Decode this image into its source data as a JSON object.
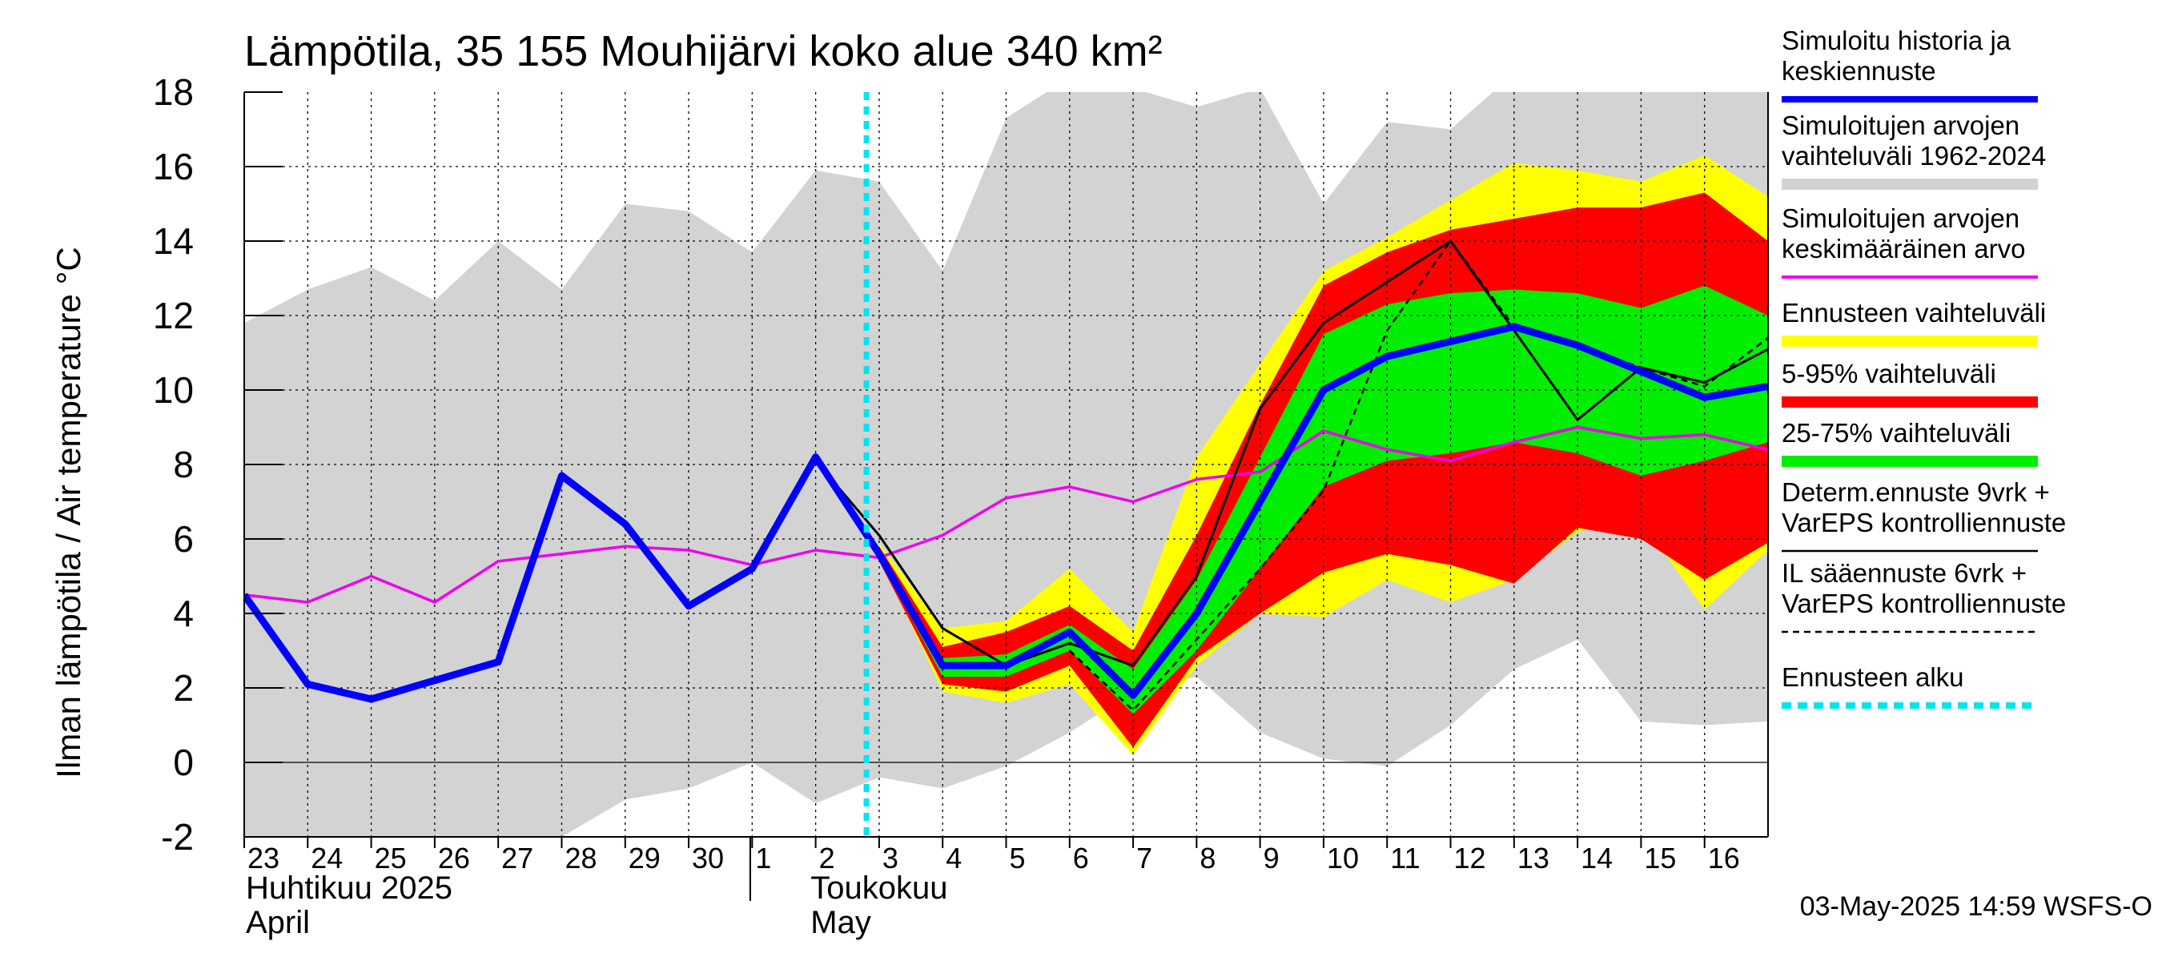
{
  "chart_data": {
    "type": "area",
    "title": "Lämpötila, 35 155 Mouhijärvi koko alue 340 km²",
    "ylabel": "Ilman lämpötila / Air temperature    °C",
    "ylim": [
      -2,
      18
    ],
    "yticks": [
      -2,
      0,
      2,
      4,
      6,
      8,
      10,
      12,
      14,
      16,
      18
    ],
    "grid": true,
    "x_start": "2025-04-23",
    "x_end": "2025-05-17",
    "forecast_start": "2025-05-03",
    "xtick_labels": [
      "23",
      "24",
      "25",
      "26",
      "27",
      "28",
      "29",
      "30",
      "1",
      "2",
      "3",
      "4",
      "5",
      "6",
      "7",
      "8",
      "9",
      "10",
      "11",
      "12",
      "13",
      "14",
      "15",
      "16"
    ],
    "month_labels": [
      {
        "fi": "Huhtikuu  2025",
        "en": "April"
      },
      {
        "fi": "Toukokuu",
        "en": "May"
      }
    ],
    "timestamp": "03-May-2025 14:59 WSFS-O",
    "colors": {
      "history_band": "#d3d3d3",
      "ensemble_range": "#ffff00",
      "p5_95": "#ff0000",
      "p25_75": "#00ee00",
      "simulated": "#0000ff",
      "mean": "#ee00ee",
      "determ": "#000000",
      "il": "#000000",
      "forecast_start": "#00e5ee"
    },
    "legend": [
      {
        "label": "Simuloitu historia ja keskiennuste",
        "key": "simulated",
        "style": "thick"
      },
      {
        "label": "Simuloitujen arvojen vaihteluväli 1962-2024",
        "key": "history_band",
        "style": "band"
      },
      {
        "label": "Simuloitujen arvojen keskimääräinen arvo",
        "key": "mean",
        "style": "line"
      },
      {
        "label": "Ennusteen vaihteluväli",
        "key": "ensemble_range",
        "style": "band"
      },
      {
        "label": "5-95% vaihteluväli",
        "key": "p5_95",
        "style": "band"
      },
      {
        "label": "25-75% vaihteluväli",
        "key": "p25_75",
        "style": "band"
      },
      {
        "label": "Determ.ennuste 9vrk + VarEPS kontrolliennuste",
        "key": "determ",
        "style": "thin"
      },
      {
        "label": "IL sääennuste 6vrk  +   VarEPS kontrolliennuste",
        "key": "il",
        "style": "dashed"
      },
      {
        "label": "Ennusteen alku",
        "key": "forecast_start",
        "style": "dotted"
      }
    ],
    "series": [
      {
        "name": "Simuloitujen arvojen vaihteluväli 1962-2024",
        "key": "history_band",
        "kind": "band",
        "x": [
          0,
          1,
          2,
          3,
          4,
          5,
          6,
          7,
          8,
          9,
          10,
          11,
          12,
          13,
          14,
          15,
          16,
          17,
          18,
          19,
          20,
          21,
          22,
          23,
          24
        ],
        "lower": [
          -2.5,
          -2.5,
          -2.5,
          -2.5,
          -2.5,
          -2.0,
          -1.0,
          -0.7,
          0.0,
          -1.1,
          -0.4,
          -0.7,
          -0.1,
          0.8,
          1.9,
          2.3,
          0.8,
          0.1,
          -0.1,
          1.0,
          2.5,
          3.3,
          1.1,
          1.0,
          1.1
        ],
        "upper": [
          11.8,
          12.7,
          13.3,
          12.4,
          14.0,
          12.7,
          15.0,
          14.8,
          13.7,
          15.9,
          15.6,
          13.2,
          17.3,
          18.4,
          18.1,
          17.6,
          18.1,
          15.0,
          17.2,
          17.0,
          18.5,
          18.5,
          18.5,
          18.5,
          18.5
        ]
      },
      {
        "name": "Ennusteen vaihteluväli",
        "key": "ensemble_range",
        "kind": "band",
        "x": [
          10.0,
          11,
          12,
          13,
          14,
          15,
          16,
          17,
          18,
          19,
          20,
          21,
          22,
          23,
          24
        ],
        "lower": [
          5.5,
          1.9,
          1.6,
          2.1,
          0.2,
          2.6,
          4.0,
          3.9,
          4.9,
          4.3,
          4.9,
          6.2,
          6.5,
          4.1,
          5.7
        ],
        "upper": [
          5.9,
          3.6,
          3.8,
          5.2,
          3.5,
          8.2,
          10.7,
          13.2,
          14.1,
          15.1,
          16.1,
          15.9,
          15.6,
          16.3,
          15.2
        ]
      },
      {
        "name": "5-95% vaihteluväli",
        "key": "p5_95",
        "kind": "band",
        "x": [
          10.0,
          11,
          12,
          13,
          14,
          15,
          16,
          17,
          18,
          19,
          20,
          21,
          22,
          23,
          24
        ],
        "lower": [
          5.4,
          2.1,
          1.9,
          2.6,
          0.4,
          2.8,
          4.0,
          5.1,
          5.6,
          5.3,
          4.8,
          6.3,
          6.0,
          4.9,
          5.9
        ],
        "upper": [
          5.8,
          3.1,
          3.5,
          4.2,
          3.0,
          6.1,
          9.6,
          12.8,
          13.7,
          14.3,
          14.6,
          14.9,
          14.9,
          15.3,
          14.0
        ]
      },
      {
        "name": "25-75% vaihteluväli",
        "key": "p25_75",
        "kind": "band",
        "x": [
          10.0,
          11,
          12,
          13,
          14,
          15,
          16,
          17,
          18,
          19,
          20,
          21,
          22,
          23,
          24
        ],
        "lower": [
          5.5,
          2.3,
          2.3,
          3.0,
          1.3,
          3.0,
          5.2,
          7.4,
          8.1,
          8.3,
          8.6,
          8.3,
          7.7,
          8.1,
          8.6
        ],
        "upper": [
          5.7,
          2.8,
          2.9,
          3.7,
          2.5,
          4.9,
          8.2,
          11.5,
          12.3,
          12.6,
          12.7,
          12.6,
          12.2,
          12.8,
          12.0
        ]
      },
      {
        "name": "Simuloitujen arvojen keskimääräinen arvo",
        "key": "mean",
        "kind": "line",
        "x": [
          0,
          1,
          2,
          3,
          4,
          5,
          6,
          7,
          8,
          9,
          10,
          11,
          12,
          13,
          14,
          15,
          16,
          17,
          18,
          19,
          20,
          21,
          22,
          23,
          24
        ],
        "y": [
          4.5,
          4.3,
          5.0,
          4.3,
          5.4,
          5.6,
          5.8,
          5.7,
          5.3,
          5.7,
          5.5,
          6.1,
          7.1,
          7.4,
          7.0,
          7.6,
          7.8,
          8.9,
          8.4,
          8.1,
          8.6,
          9.0,
          8.7,
          8.8,
          8.4
        ]
      },
      {
        "name": "Simuloitu historia ja keskiennuste",
        "key": "simulated",
        "kind": "line",
        "x": [
          0,
          1,
          2,
          3,
          4,
          5,
          6,
          7,
          8,
          9,
          10,
          11,
          12,
          13,
          14,
          15,
          16,
          17,
          18,
          19,
          20,
          21,
          22,
          23,
          24
        ],
        "y": [
          4.5,
          2.1,
          1.7,
          2.2,
          2.7,
          7.7,
          6.4,
          4.2,
          5.2,
          8.2,
          5.6,
          2.6,
          2.6,
          3.5,
          1.8,
          4.0,
          7.0,
          10.0,
          10.9,
          11.3,
          11.7,
          11.2,
          10.5,
          9.8,
          10.1
        ]
      },
      {
        "name": "Determ.ennuste 9vrk + VarEPS kontrolliennuste",
        "key": "determ",
        "kind": "line",
        "x": [
          8,
          9,
          10,
          11,
          12,
          13,
          14,
          15,
          16,
          17,
          18,
          19,
          20,
          21,
          22,
          23,
          24
        ],
        "y": [
          5.3,
          8.1,
          6.1,
          3.6,
          2.6,
          3.2,
          2.6,
          5.0,
          9.5,
          11.8,
          12.9,
          14.0,
          11.6,
          9.2,
          10.6,
          10.2,
          11.1
        ]
      },
      {
        "name": "IL sääennuste 6vrk  +   VarEPS kontrolliennuste",
        "key": "il",
        "kind": "line",
        "x": [
          13,
          14,
          15,
          16,
          17,
          18,
          19,
          20,
          21,
          22,
          23,
          24
        ],
        "y": [
          3.0,
          1.4,
          3.3,
          5.2,
          7.3,
          11.6,
          14.0,
          11.7,
          11.2,
          10.6,
          10.1,
          11.4
        ]
      }
    ]
  }
}
